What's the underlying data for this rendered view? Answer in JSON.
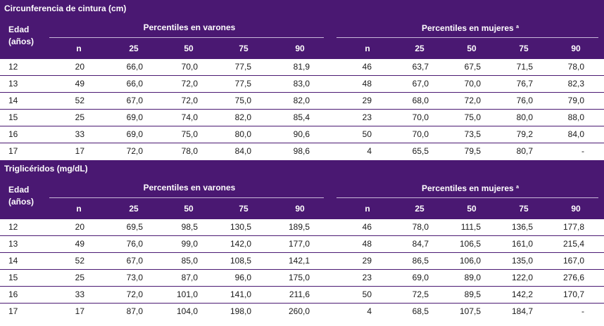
{
  "tables": [
    {
      "title": "Circunferencia de cintura (cm)",
      "edad_label": [
        "Edad",
        "(años)"
      ],
      "group_varones": "Percentiles en varones",
      "group_mujeres": "Percentiles en mujeres",
      "mujeres_footnote": "a",
      "columns": [
        "n",
        "25",
        "50",
        "75",
        "90"
      ],
      "rows": [
        {
          "age": "12",
          "varones": [
            "20",
            "66,0",
            "70,0",
            "77,5",
            "81,9"
          ],
          "mujeres": [
            "46",
            "63,7",
            "67,5",
            "71,5",
            "78,0"
          ]
        },
        {
          "age": "13",
          "varones": [
            "49",
            "66,0",
            "72,0",
            "77,5",
            "83,0"
          ],
          "mujeres": [
            "48",
            "67,0",
            "70,0",
            "76,7",
            "82,3"
          ]
        },
        {
          "age": "14",
          "varones": [
            "52",
            "67,0",
            "72,0",
            "75,0",
            "82,0"
          ],
          "mujeres": [
            "29",
            "68,0",
            "72,0",
            "76,0",
            "79,0"
          ]
        },
        {
          "age": "15",
          "varones": [
            "25",
            "69,0",
            "74,0",
            "82,0",
            "85,4"
          ],
          "mujeres": [
            "23",
            "70,0",
            "75,0",
            "80,0",
            "88,0"
          ]
        },
        {
          "age": "16",
          "varones": [
            "33",
            "69,0",
            "75,0",
            "80,0",
            "90,6"
          ],
          "mujeres": [
            "50",
            "70,0",
            "73,5",
            "79,2",
            "84,0"
          ]
        },
        {
          "age": "17",
          "varones": [
            "17",
            "72,0",
            "78,0",
            "84,0",
            "98,6"
          ],
          "mujeres": [
            "4",
            "65,5",
            "79,5",
            "80,7",
            "-"
          ]
        }
      ]
    },
    {
      "title": "Triglicéridos (mg/dL)",
      "edad_label": [
        "Edad",
        "(años)"
      ],
      "group_varones": "Percentiles en varones",
      "group_mujeres": "Percentiles en mujeres",
      "mujeres_footnote": "a",
      "columns": [
        "n",
        "25",
        "50",
        "75",
        "90"
      ],
      "rows": [
        {
          "age": "12",
          "varones": [
            "20",
            "69,5",
            "98,5",
            "130,5",
            "189,5"
          ],
          "mujeres": [
            "46",
            "78,0",
            "111,5",
            "136,5",
            "177,8"
          ]
        },
        {
          "age": "13",
          "varones": [
            "49",
            "76,0",
            "99,0",
            "142,0",
            "177,0"
          ],
          "mujeres": [
            "48",
            "84,7",
            "106,5",
            "161,0",
            "215,4"
          ]
        },
        {
          "age": "14",
          "varones": [
            "52",
            "67,0",
            "85,0",
            "108,5",
            "142,1"
          ],
          "mujeres": [
            "29",
            "86,5",
            "106,0",
            "135,0",
            "167,0"
          ]
        },
        {
          "age": "15",
          "varones": [
            "25",
            "73,0",
            "87,0",
            "96,0",
            "175,0"
          ],
          "mujeres": [
            "23",
            "69,0",
            "89,0",
            "122,0",
            "276,6"
          ]
        },
        {
          "age": "16",
          "varones": [
            "33",
            "72,0",
            "101,0",
            "141,0",
            "211,6"
          ],
          "mujeres": [
            "50",
            "72,5",
            "89,5",
            "142,2",
            "170,7"
          ]
        },
        {
          "age": "17",
          "varones": [
            "17",
            "87,0",
            "104,0",
            "198,0",
            "260,0"
          ],
          "mujeres": [
            "4",
            "68,5",
            "107,5",
            "184,7",
            "-"
          ]
        }
      ]
    }
  ]
}
